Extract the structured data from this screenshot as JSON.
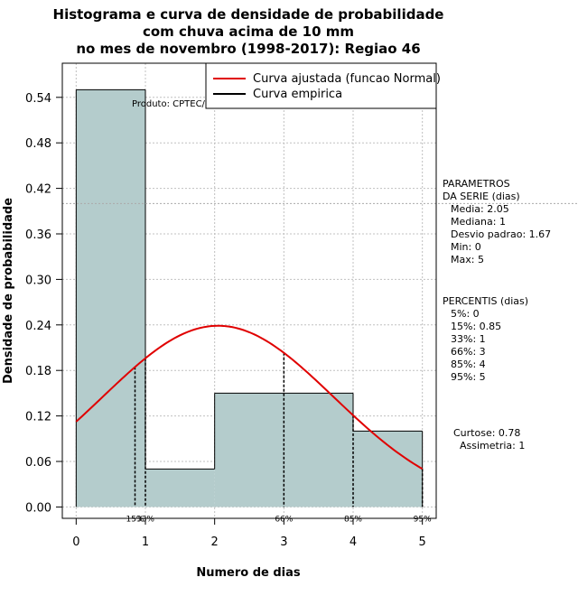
{
  "chart_data": {
    "type": "bar",
    "title_lines": [
      "Histograma e curva de densidade de probabilidade",
      "com chuva acima de 10 mm",
      "no mes de novembro (1998-2017): Regiao 46"
    ],
    "xlabel": "Numero de dias",
    "ylabel": "Densidade de probabilidade",
    "xlim": [
      -0.2,
      5.2
    ],
    "ylim": [
      -0.015,
      0.585
    ],
    "x_ticks": [
      0,
      1,
      2,
      3,
      4,
      5
    ],
    "x_tick_labels": [
      "0",
      "1",
      "2",
      "3",
      "4",
      "5"
    ],
    "y_ticks": [
      0.0,
      0.06,
      0.12,
      0.18,
      0.24,
      0.3,
      0.36,
      0.42,
      0.48,
      0.54
    ],
    "y_tick_labels": [
      "0.00",
      "0.06",
      "0.12",
      "0.18",
      "0.24",
      "0.30",
      "0.36",
      "0.42",
      "0.48",
      "0.54"
    ],
    "bars": [
      {
        "x0": 0,
        "x1": 1,
        "density": 0.55
      },
      {
        "x0": 1,
        "x1": 2,
        "density": 0.05
      },
      {
        "x0": 2,
        "x1": 3,
        "density": 0.15
      },
      {
        "x0": 3,
        "x1": 4,
        "density": 0.15
      },
      {
        "x0": 4,
        "x1": 5,
        "density": 0.1
      }
    ],
    "normal_fit": {
      "mean": 2.05,
      "sd": 1.67,
      "from": 0,
      "to": 5
    },
    "hline_y": 0.4,
    "percentile_lines": [
      {
        "label": "15%",
        "x": 0.85
      },
      {
        "label": "33%",
        "x": 1
      },
      {
        "label": "66%",
        "x": 3
      },
      {
        "label": "85%",
        "x": 4
      },
      {
        "label": "95%",
        "x": 5
      }
    ],
    "legend": [
      {
        "label": "Curva ajustada (funcao Normal)",
        "color": "#e00000"
      },
      {
        "label": "Curva empirica",
        "color": "#000000"
      }
    ],
    "product_label": "Produto: CPTEC/INPE",
    "colors": {
      "bar_fill": "#b4cccc",
      "curve": "#e00000",
      "grid": "#c0c0c0"
    }
  },
  "side_panel": {
    "params_header": [
      "PARAMETROS",
      "DA SERIE (dias)"
    ],
    "params": [
      "Media: 2.05",
      "Mediana: 1",
      "Desvio padrao: 1.67",
      "Min: 0",
      "Max: 5"
    ],
    "percentis_header": "PERCENTIS (dias)",
    "percentis": [
      "5%: 0",
      "15%: 0.85",
      "33%: 1",
      "66%: 3",
      "85%: 4",
      "95%: 5"
    ],
    "curtose": "Curtose: 0.78",
    "assimetria": "Assimetria: 1"
  }
}
